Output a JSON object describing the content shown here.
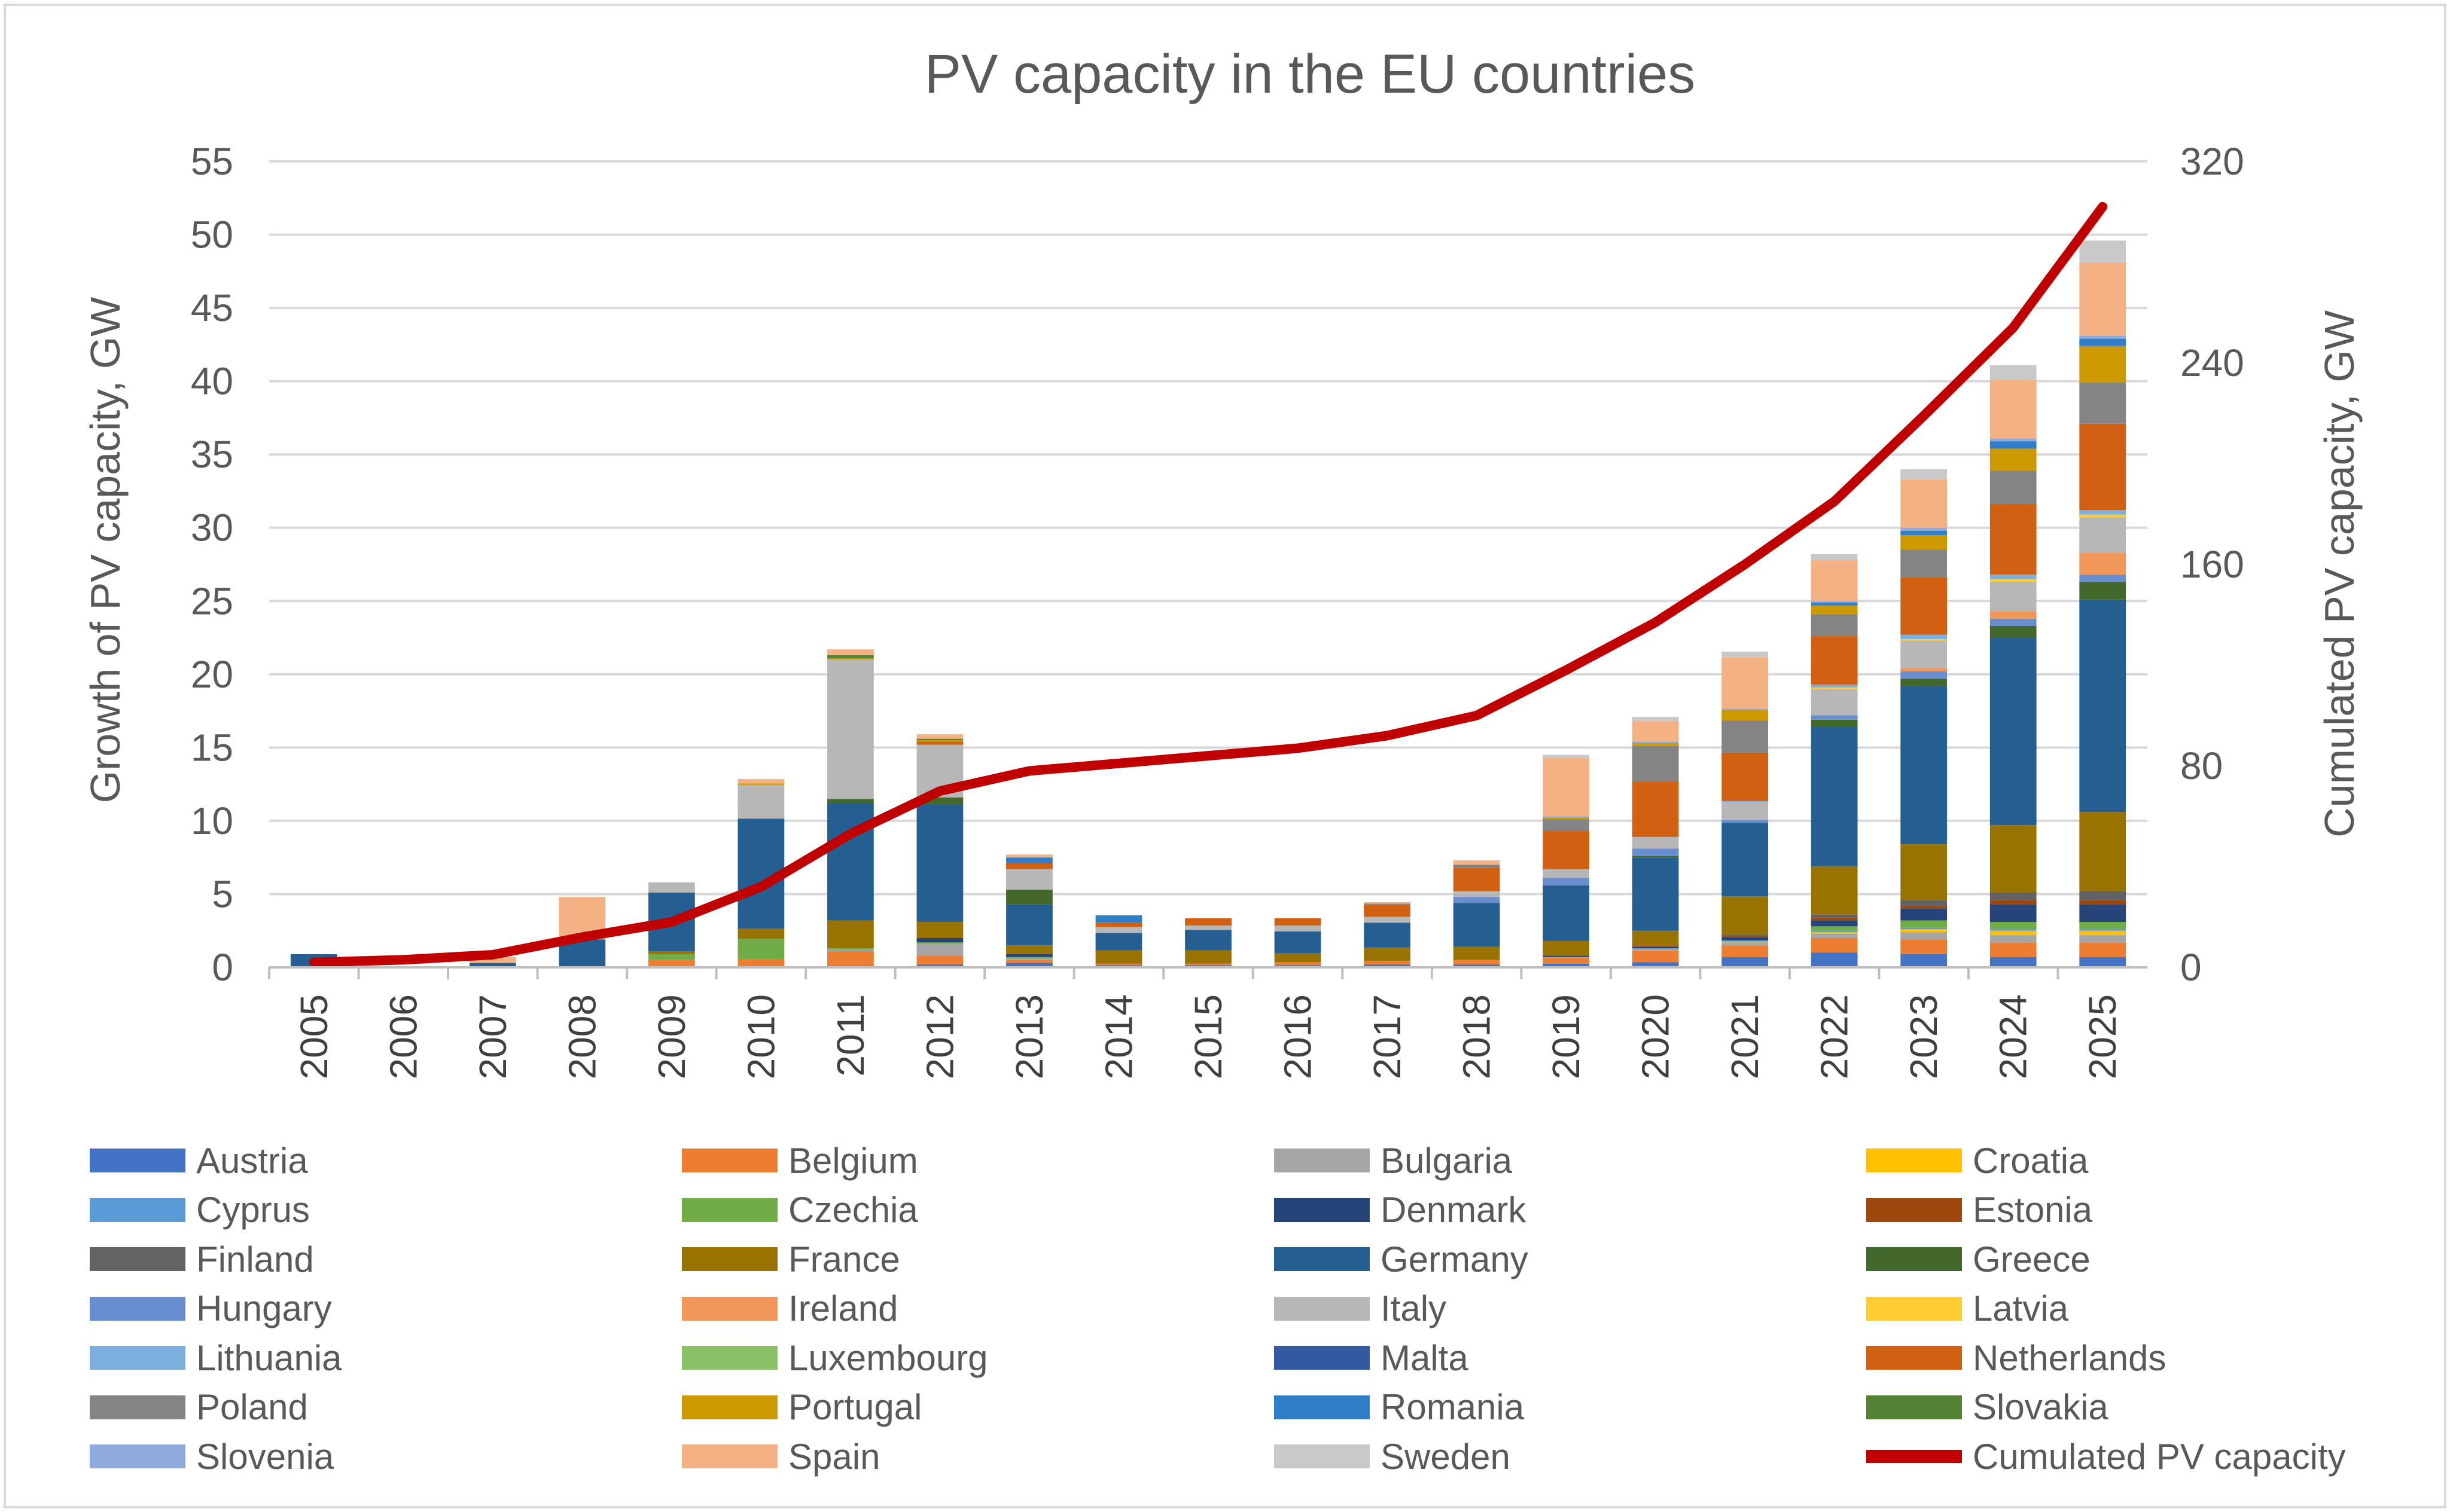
{
  "chart_data": {
    "type": "bar",
    "title": "PV capacity in the EU countries",
    "ylabel": "Growth of PV capacity, GW",
    "y2label": "Cumulated PV capacity, GW",
    "ylim": [
      0,
      55
    ],
    "y2lim": [
      0,
      320
    ],
    "yticks": [
      0,
      5,
      10,
      15,
      20,
      25,
      30,
      35,
      40,
      45,
      50,
      55
    ],
    "y2ticks": [
      0,
      80,
      160,
      240,
      320
    ],
    "categories": [
      "2005",
      "2006",
      "2007",
      "2008",
      "2009",
      "2010",
      "2011",
      "2012",
      "2013",
      "2014",
      "2015",
      "2016",
      "2017",
      "2018",
      "2019",
      "2020",
      "2021",
      "2022",
      "2023",
      "2024",
      "2025"
    ],
    "grid": true,
    "legend_position": "bottom",
    "series": [
      {
        "name": "Austria",
        "color": "#4472C4",
        "values": [
          0,
          0,
          0,
          0,
          0,
          0.05,
          0.1,
          0.2,
          0.3,
          0.15,
          0.15,
          0.15,
          0.2,
          0.2,
          0.25,
          0.35,
          0.7,
          1.0,
          0.9,
          0.7,
          0.7
        ]
      },
      {
        "name": "Belgium",
        "color": "#ED7D31",
        "values": [
          0,
          0,
          0,
          0,
          0.5,
          0.5,
          1.0,
          0.6,
          0.2,
          0.1,
          0.1,
          0.2,
          0.25,
          0.3,
          0.4,
          0.8,
          0.8,
          1.0,
          1.0,
          1.0,
          1.0
        ]
      },
      {
        "name": "Bulgaria",
        "color": "#A5A5A5",
        "values": [
          0,
          0,
          0,
          0,
          0,
          0,
          0.1,
          0.8,
          0.1,
          0,
          0,
          0,
          0,
          0,
          0.05,
          0.1,
          0.2,
          0.3,
          0.5,
          0.5,
          0.5
        ]
      },
      {
        "name": "Croatia",
        "color": "#FFC000",
        "values": [
          0,
          0,
          0,
          0,
          0,
          0,
          0,
          0,
          0,
          0,
          0,
          0,
          0,
          0,
          0,
          0,
          0.05,
          0.1,
          0.2,
          0.3,
          0.3
        ]
      },
      {
        "name": "Cyprus",
        "color": "#5B9BD5",
        "values": [
          0,
          0,
          0,
          0,
          0,
          0,
          0,
          0,
          0,
          0,
          0,
          0,
          0,
          0,
          0,
          0.05,
          0.1,
          0.1,
          0.1,
          0.1,
          0.1
        ]
      },
      {
        "name": "Czechia",
        "color": "#70AD47",
        "values": [
          0,
          0,
          0,
          0,
          0.4,
          1.4,
          0.1,
          0.1,
          0.1,
          0,
          0,
          0,
          0,
          0,
          0,
          0,
          0,
          0.3,
          0.5,
          0.5,
          0.5
        ]
      },
      {
        "name": "Denmark",
        "color": "#264478",
        "values": [
          0,
          0,
          0,
          0,
          0,
          0,
          0,
          0.3,
          0.2,
          0,
          0,
          0,
          0,
          0,
          0.1,
          0.1,
          0.2,
          0.4,
          0.8,
          1.2,
          1.2
        ]
      },
      {
        "name": "Estonia",
        "color": "#9E480E",
        "values": [
          0,
          0,
          0,
          0,
          0,
          0,
          0,
          0,
          0,
          0,
          0,
          0,
          0,
          0,
          0,
          0.1,
          0.1,
          0.2,
          0.2,
          0.3,
          0.3
        ]
      },
      {
        "name": "Finland",
        "color": "#636363",
        "values": [
          0,
          0,
          0,
          0,
          0,
          0,
          0,
          0,
          0,
          0,
          0,
          0,
          0,
          0,
          0,
          0,
          0.1,
          0.2,
          0.4,
          0.5,
          0.6
        ]
      },
      {
        "name": "France",
        "color": "#997300",
        "values": [
          0,
          0,
          0,
          0,
          0.2,
          0.7,
          1.9,
          1.1,
          0.6,
          0.9,
          0.9,
          0.6,
          0.9,
          0.9,
          1.0,
          1.0,
          2.6,
          3.3,
          3.8,
          4.6,
          5.4
        ]
      },
      {
        "name": "Germany",
        "color": "#255E91",
        "values": [
          0.9,
          0,
          0.3,
          1.9,
          4.0,
          7.5,
          8.0,
          8.0,
          2.8,
          1.2,
          1.4,
          1.5,
          1.7,
          3.0,
          3.8,
          5.0,
          5.0,
          9.5,
          10.8,
          12.8,
          14.5
        ]
      },
      {
        "name": "Greece",
        "color": "#43682B",
        "values": [
          0,
          0,
          0,
          0,
          0,
          0,
          0.3,
          0.5,
          1.0,
          0,
          0,
          0,
          0,
          0,
          0,
          0.1,
          0,
          0.5,
          0.5,
          0.8,
          1.2
        ]
      },
      {
        "name": "Hungary",
        "color": "#698ED0",
        "values": [
          0,
          0,
          0,
          0,
          0,
          0,
          0,
          0,
          0,
          0,
          0,
          0,
          0,
          0.4,
          0.5,
          0.5,
          0.2,
          0.3,
          0.5,
          0.5,
          0.5
        ]
      },
      {
        "name": "Ireland",
        "color": "#F1975A",
        "values": [
          0,
          0,
          0,
          0,
          0,
          0,
          0,
          0,
          0,
          0,
          0,
          0,
          0,
          0,
          0,
          0,
          0,
          0,
          0.2,
          0.5,
          1.5
        ]
      },
      {
        "name": "Italy",
        "color": "#B7B7B7",
        "values": [
          0,
          0,
          0,
          0.1,
          0.7,
          2.3,
          9.5,
          3.6,
          1.4,
          0.4,
          0.3,
          0.4,
          0.4,
          0.4,
          0.6,
          0.8,
          1.2,
          1.8,
          1.9,
          2.0,
          2.4
        ]
      },
      {
        "name": "Latvia",
        "color": "#FFCD33",
        "values": [
          0,
          0,
          0,
          0,
          0,
          0,
          0,
          0,
          0,
          0,
          0,
          0,
          0,
          0,
          0,
          0,
          0,
          0.1,
          0.1,
          0.2,
          0.2
        ]
      },
      {
        "name": "Lithuania",
        "color": "#7CAFDD",
        "values": [
          0,
          0,
          0,
          0,
          0,
          0,
          0,
          0,
          0,
          0,
          0,
          0,
          0,
          0,
          0,
          0,
          0.1,
          0.2,
          0.3,
          0.3,
          0.3
        ]
      },
      {
        "name": "Luxembourg",
        "color": "#8CC168",
        "values": [
          0,
          0,
          0,
          0,
          0,
          0,
          0,
          0,
          0,
          0,
          0,
          0,
          0,
          0,
          0,
          0,
          0,
          0,
          0,
          0,
          0
        ]
      },
      {
        "name": "Malta",
        "color": "#335AA1",
        "values": [
          0,
          0,
          0,
          0,
          0,
          0,
          0,
          0,
          0,
          0,
          0,
          0,
          0,
          0,
          0,
          0,
          0,
          0,
          0,
          0,
          0
        ]
      },
      {
        "name": "Netherlands",
        "color": "#D26012",
        "values": [
          0,
          0,
          0,
          0,
          0,
          0,
          0,
          0.2,
          0.4,
          0.3,
          0.5,
          0.5,
          0.8,
          1.6,
          2.6,
          3.8,
          3.3,
          3.3,
          3.9,
          4.8,
          5.9
        ]
      },
      {
        "name": "Poland",
        "color": "#848484",
        "values": [
          0,
          0,
          0,
          0,
          0,
          0,
          0,
          0,
          0,
          0,
          0,
          0,
          0.1,
          0.2,
          0.8,
          2.4,
          2.2,
          1.5,
          1.9,
          2.3,
          2.8
        ]
      },
      {
        "name": "Portugal",
        "color": "#CC9A00",
        "values": [
          0,
          0,
          0,
          0,
          0,
          0.1,
          0.1,
          0.1,
          0,
          0,
          0,
          0,
          0,
          0,
          0.1,
          0.2,
          0.7,
          0.6,
          1.0,
          1.5,
          2.5
        ]
      },
      {
        "name": "Romania",
        "color": "#2F7EC7",
        "values": [
          0,
          0,
          0,
          0,
          0,
          0,
          0,
          0,
          0.4,
          0.5,
          0,
          0,
          0,
          0,
          0,
          0,
          0,
          0.2,
          0.3,
          0.5,
          0.5
        ]
      },
      {
        "name": "Slovakia",
        "color": "#548235",
        "values": [
          0,
          0,
          0,
          0,
          0,
          0,
          0.2,
          0.1,
          0,
          0,
          0,
          0,
          0,
          0,
          0,
          0,
          0,
          0,
          0,
          0,
          0
        ]
      },
      {
        "name": "Slovenia",
        "color": "#8FAADC",
        "values": [
          0,
          0,
          0,
          0,
          0,
          0,
          0,
          0,
          0,
          0,
          0,
          0,
          0,
          0,
          0.1,
          0.1,
          0.1,
          0.1,
          0.2,
          0.2,
          0.2
        ]
      },
      {
        "name": "Spain",
        "color": "#F4B183",
        "values": [
          0,
          0,
          0.4,
          2.8,
          0,
          0.3,
          0.4,
          0.3,
          0.2,
          0,
          0,
          0,
          0.1,
          0.3,
          4.0,
          1.4,
          3.5,
          2.8,
          3.3,
          4.0,
          5.0
        ]
      },
      {
        "name": "Sweden",
        "color": "#C9C9C9",
        "values": [
          0,
          0,
          0,
          0,
          0,
          0,
          0,
          0,
          0,
          0,
          0,
          0,
          0,
          0,
          0.2,
          0.3,
          0.4,
          0.4,
          0.7,
          1.0,
          1.5
        ]
      }
    ],
    "line_series": {
      "name": "Cumulated PV capacity",
      "color": "#C00000",
      "axis": "right",
      "values": [
        2,
        3,
        5,
        12,
        18,
        32,
        53,
        70,
        78,
        81,
        84,
        87,
        92,
        100,
        118,
        137,
        160,
        185,
        219,
        254,
        302
      ]
    }
  }
}
